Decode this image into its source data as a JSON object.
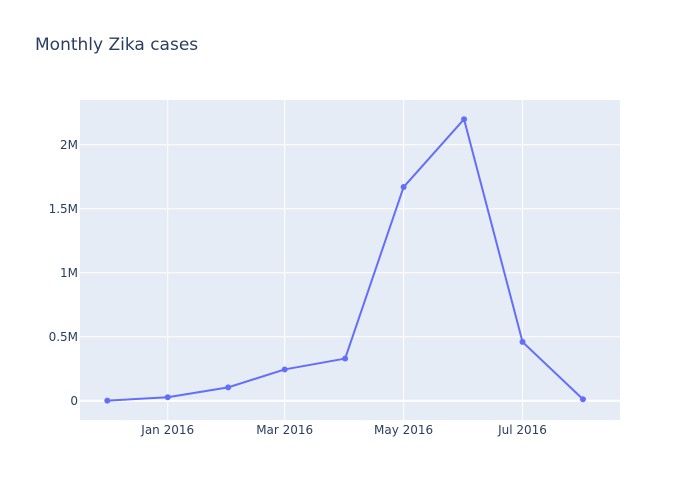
{
  "chart_data": {
    "type": "line",
    "title": "Monthly Zika cases",
    "xlabel": "",
    "ylabel": "",
    "x": [
      "2015-12-01",
      "2016-01-01",
      "2016-02-01",
      "2016-03-01",
      "2016-04-01",
      "2016-05-01",
      "2016-06-01",
      "2016-07-01",
      "2016-08-01"
    ],
    "series": [
      {
        "values": [
          1000,
          28000,
          105000,
          245000,
          330000,
          1670000,
          2200000,
          460000,
          12000
        ]
      }
    ],
    "ylim": [
      -150000,
      2350000
    ],
    "xlim": [
      "2015-11-17",
      "2016-08-20"
    ],
    "y_ticks": [
      {
        "value": 0,
        "label": "0"
      },
      {
        "value": 500000,
        "label": "0.5M"
      },
      {
        "value": 1000000,
        "label": "1M"
      },
      {
        "value": 1500000,
        "label": "1.5M"
      },
      {
        "value": 2000000,
        "label": "2M"
      }
    ],
    "x_ticks": [
      {
        "value": "2016-01-01",
        "label": "Jan 2016"
      },
      {
        "value": "2016-03-01",
        "label": "Mar 2016"
      },
      {
        "value": "2016-05-01",
        "label": "May 2016"
      },
      {
        "value": "2016-07-01",
        "label": "Jul 2016"
      }
    ],
    "grid": true,
    "colors": {
      "plot_background": "#e5ecf6",
      "gridline": "#ffffff",
      "line": "#636efa",
      "text": "#2a3f5f"
    }
  }
}
